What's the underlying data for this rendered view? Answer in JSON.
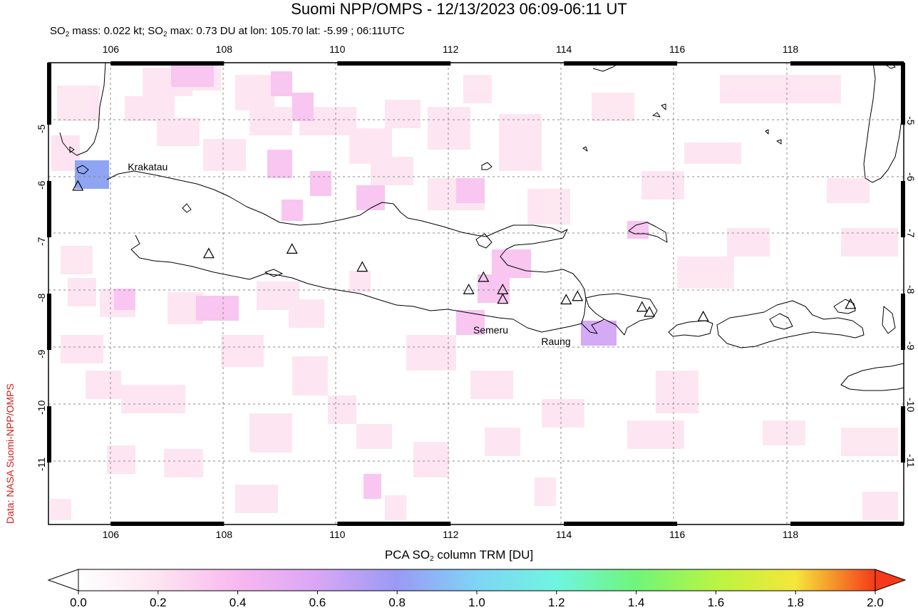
{
  "title": "Suomi NPP/OMPS - 12/13/2023 06:09-06:11 UT",
  "subtitle": {
    "pre": "SO",
    "sub": "2",
    "mid": " mass: 0.022 kt; SO",
    "sub2": "2",
    "post": " max: 0.73 DU at lon: 105.70 lat: -5.99 ; 06:11UTC"
  },
  "credit": "Data: NASA Suomi-NPP/OMPS",
  "map": {
    "lon_range": [
      104.9,
      120.0
    ],
    "lat_range": [
      -12.1,
      -3.9
    ],
    "lon_ticks": [
      "106",
      "108",
      "110",
      "112",
      "114",
      "116",
      "118"
    ],
    "lat_ticks": [
      "-5",
      "-6",
      "-7",
      "-8",
      "-9",
      "-10",
      "-11"
    ],
    "volcano_labels": [
      {
        "name": "Krakatau",
        "lon": 106.3,
        "lat": -5.75
      },
      {
        "name": "Semeru",
        "lon": 112.4,
        "lat": -8.65
      },
      {
        "name": "Raung",
        "lon": 113.6,
        "lat": -8.85
      }
    ],
    "volcanoes": [
      [
        105.42,
        -6.1
      ],
      [
        107.73,
        -7.3
      ],
      [
        109.2,
        -7.22
      ],
      [
        110.44,
        -7.54
      ],
      [
        112.32,
        -7.94
      ],
      [
        112.58,
        -7.72
      ],
      [
        112.92,
        -7.94
      ],
      [
        112.92,
        -8.11
      ],
      [
        114.04,
        -8.12
      ],
      [
        114.24,
        -8.06
      ],
      [
        115.38,
        -8.25
      ],
      [
        115.51,
        -8.34
      ],
      [
        116.46,
        -8.42
      ],
      [
        119.06,
        -8.2
      ]
    ]
  },
  "colorbar": {
    "title_pre": "PCA SO",
    "title_sub": "2",
    "title_post": " column TRM [DU]",
    "ticks": [
      "0.0",
      "0.2",
      "0.4",
      "0.6",
      "0.8",
      "1.0",
      "1.2",
      "1.4",
      "1.6",
      "1.8",
      "2.0"
    ],
    "range": [
      0,
      2
    ],
    "colors": [
      "#ffffff",
      "#fde4f0",
      "#f8b8f0",
      "#d9a6f5",
      "#9a9af5",
      "#7fd4f5",
      "#6ff5e0",
      "#6ff57a",
      "#b8f542",
      "#f5e63a",
      "#f59a2a",
      "#f53a1a"
    ]
  }
}
